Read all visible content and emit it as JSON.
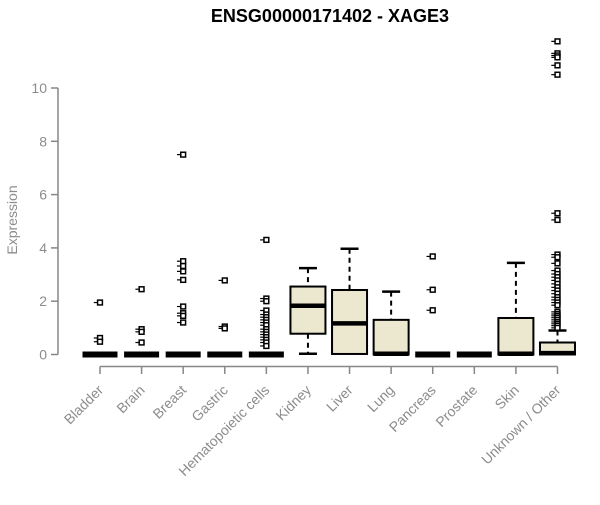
{
  "chart_data": {
    "type": "boxplot",
    "title": "ENSG00000171402 - XAGE3",
    "ylabel": "Expression",
    "xlabel": "",
    "ylim": [
      0,
      10
    ],
    "yticks": [
      0,
      2,
      4,
      6,
      8,
      10
    ],
    "grid": false,
    "legend": "none",
    "colors": {
      "box_fill": "#ece7cf",
      "box_stroke": "#000000",
      "axis": "#878787",
      "label_text": "#8c8c8c",
      "title_text": "#000000",
      "background": "#ffffff"
    },
    "categories": [
      "Bladder",
      "Brain",
      "Breast",
      "Gastric",
      "Hematopoietic cells",
      "Kidney",
      "Liver",
      "Lung",
      "Pancreas",
      "Prostate",
      "Skin",
      "Unknown / Other"
    ],
    "series": [
      {
        "category": "Bladder",
        "q1": 0,
        "median": 0,
        "q3": 0,
        "whisker_low": 0,
        "whisker_high": 0,
        "outliers": [
          1.95,
          0.62,
          0.48
        ]
      },
      {
        "category": "Brain",
        "q1": 0,
        "median": 0,
        "q3": 0,
        "whisker_low": 0,
        "whisker_high": 0,
        "outliers": [
          2.45,
          0.95,
          0.85,
          0.45
        ]
      },
      {
        "category": "Breast",
        "q1": 0,
        "median": 0,
        "q3": 0,
        "whisker_low": 0,
        "whisker_high": 0,
        "outliers": [
          7.5,
          3.5,
          3.32,
          3.12,
          2.8,
          1.8,
          1.55,
          1.45,
          1.2
        ]
      },
      {
        "category": "Gastric",
        "q1": 0,
        "median": 0,
        "q3": 0,
        "whisker_low": 0,
        "whisker_high": 0,
        "outliers": [
          2.78,
          1.05,
          0.98
        ]
      },
      {
        "category": "Hematopoietic cells",
        "q1": 0,
        "median": 0,
        "q3": 0,
        "whisker_low": 0,
        "whisker_high": 0,
        "outliers": [
          4.3,
          2.1,
          2.0,
          1.65,
          1.5,
          1.4,
          1.3,
          1.2,
          1.1,
          0.95,
          0.85,
          0.75,
          0.65,
          0.55,
          0.45,
          0.32
        ]
      },
      {
        "category": "Kidney",
        "q1": 0.78,
        "median": 1.83,
        "q3": 2.55,
        "whisker_low": 0.03,
        "whisker_high": 3.24,
        "outliers": []
      },
      {
        "category": "Liver",
        "q1": 0.02,
        "median": 1.17,
        "q3": 2.42,
        "whisker_low": 0.02,
        "whisker_high": 3.97,
        "outliers": []
      },
      {
        "category": "Lung",
        "q1": 0,
        "median": 0.03,
        "q3": 1.3,
        "whisker_low": 0,
        "whisker_high": 2.36,
        "outliers": []
      },
      {
        "category": "Pancreas",
        "q1": 0,
        "median": 0,
        "q3": 0,
        "whisker_low": 0,
        "whisker_high": 0,
        "outliers": [
          3.68,
          2.43,
          1.66
        ]
      },
      {
        "category": "Prostate",
        "q1": 0,
        "median": 0,
        "q3": 0,
        "whisker_low": 0,
        "whisker_high": 0,
        "outliers": []
      },
      {
        "category": "Skin",
        "q1": 0,
        "median": 0.03,
        "q3": 1.37,
        "whisker_low": 0,
        "whisker_high": 3.44,
        "outliers": []
      },
      {
        "category": "Unknown / Other",
        "q1": 0,
        "median": 0.05,
        "q3": 0.45,
        "whisker_low": 0,
        "whisker_high": 0.9,
        "outliers": [
          11.75,
          11.3,
          11.22,
          11.15,
          10.85,
          10.5,
          5.3,
          5.05,
          3.75,
          3.65,
          3.42,
          3.15,
          3.02,
          2.9,
          2.78,
          2.65,
          2.52,
          2.4,
          2.28,
          2.15,
          2.05,
          1.95,
          1.85,
          1.6,
          1.52,
          1.45,
          1.38,
          1.3,
          1.22,
          1.15,
          1.08,
          1.0
        ]
      }
    ]
  }
}
